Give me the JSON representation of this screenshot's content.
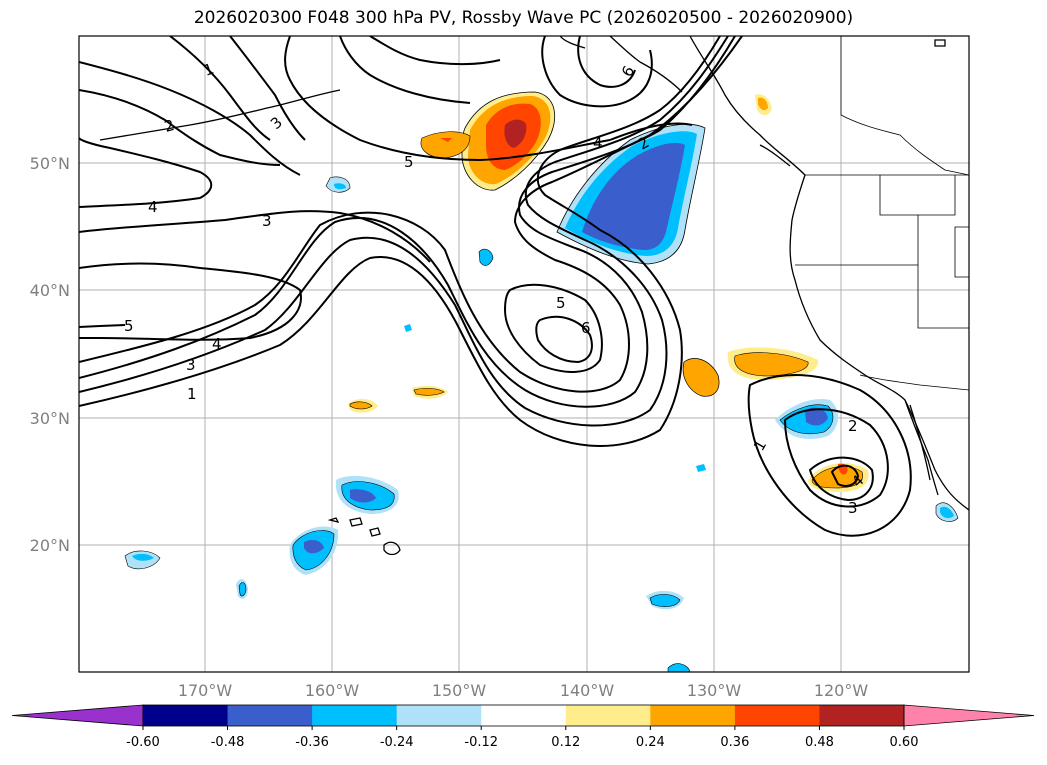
{
  "title": "2026020300 F048 300 hPa PV, Rossby Wave PC (2026020500 - 2026020900)",
  "lat_labels": [
    "50°N",
    "40°N",
    "30°N",
    "20°N"
  ],
  "lon_labels": [
    "170°W",
    "160°W",
    "150°W",
    "140°W",
    "130°W",
    "120°W"
  ],
  "contour_labels": [
    "1",
    "2",
    "3",
    "5",
    "4",
    "3",
    "2",
    "1",
    "5",
    "4",
    "3",
    "1",
    "5",
    "6",
    "4",
    "2",
    "6",
    "1",
    "2",
    "3",
    "4"
  ],
  "colorbar": {
    "colors": [
      "#9932cc",
      "#00008b",
      "#3a5fcd",
      "#00bfff",
      "#afe2f8",
      "#ffffff",
      "#ffec8b",
      "#ffa500",
      "#ff4500",
      "#b22222",
      "#ff82ab"
    ],
    "ticks": [
      "-0.60",
      "-0.48",
      "-0.36",
      "-0.24",
      "-0.12",
      "0.12",
      "0.24",
      "0.36",
      "0.48",
      "0.60"
    ]
  }
}
